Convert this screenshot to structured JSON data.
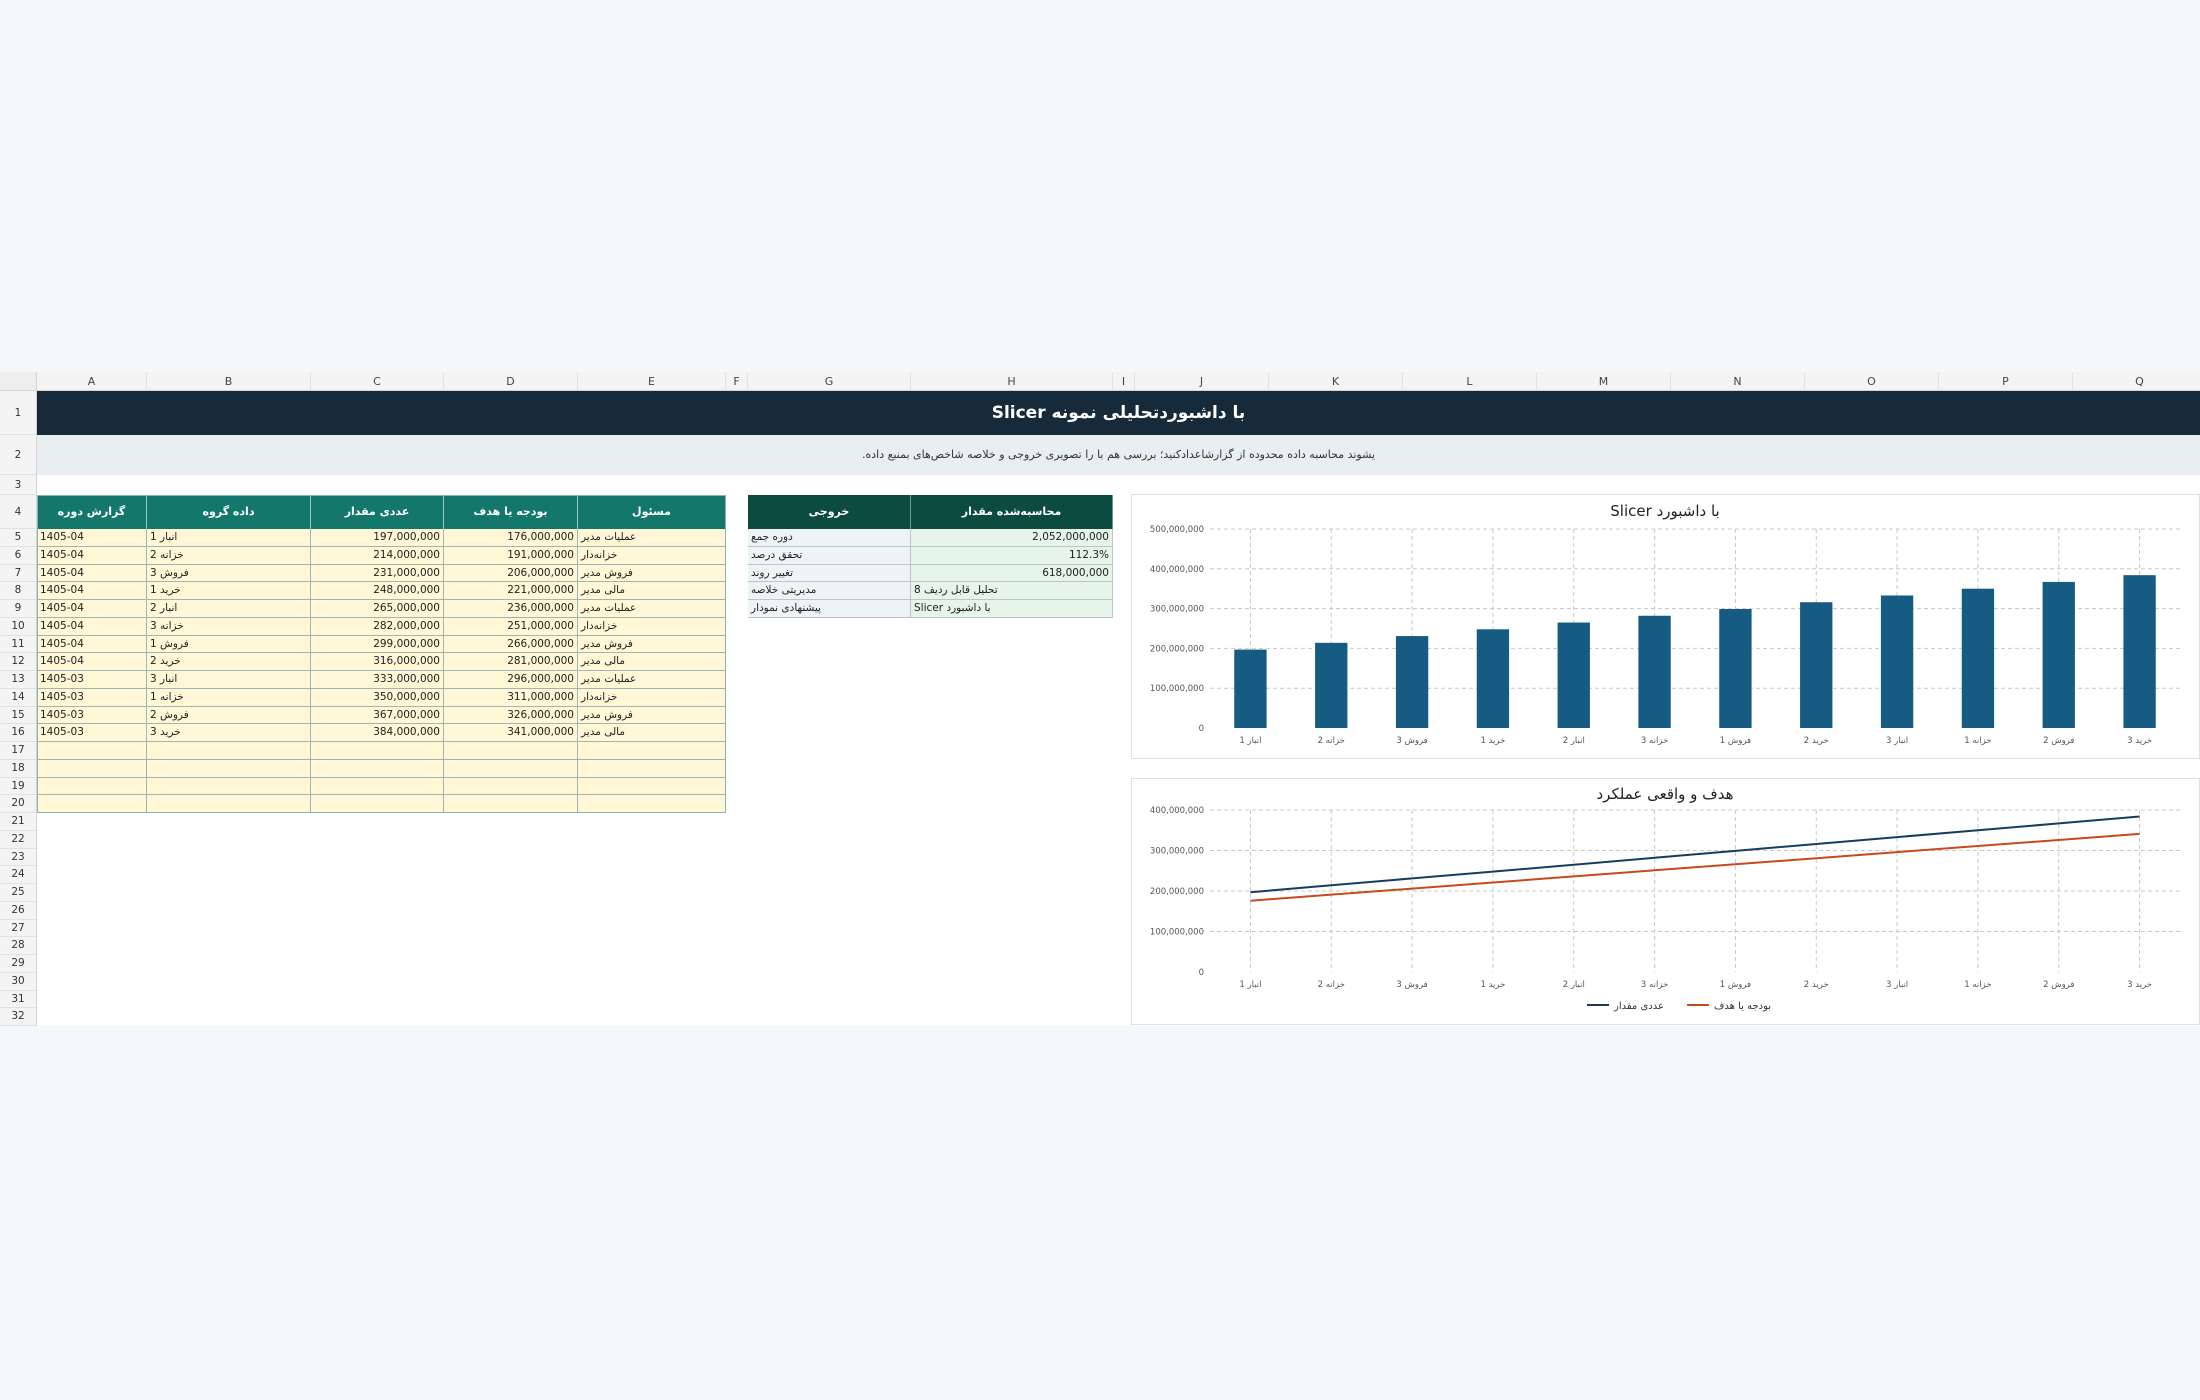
{
  "sheet": {
    "columns": [
      "A",
      "B",
      "C",
      "D",
      "E",
      "F",
      "G",
      "H",
      "I",
      "J",
      "K",
      "L",
      "M",
      "N",
      "O",
      "P",
      "Q"
    ],
    "rows": [
      "1",
      "2",
      "3",
      "4",
      "5",
      "6",
      "7",
      "8",
      "9",
      "10",
      "11",
      "12",
      "13",
      "14",
      "15",
      "16",
      "17",
      "18",
      "19",
      "20",
      "21",
      "22",
      "23",
      "24",
      "25",
      "26",
      "27",
      "28",
      "29",
      "30",
      "31",
      "32"
    ],
    "title": "Slicer با داشبوردتحلیلی نمونه",
    "subtitle": ".یشوند محاسبه داده محدوده از گزارشاعدادکنید؛ بررسی هم با را تصویری خروجی و خلاصه شاخص‌های بمنبع داده"
  },
  "data_table": {
    "headers": [
      "گزارش دوره",
      "داده گروه",
      "عددی مقدار",
      "بودجه یا هدف",
      "مسئول"
    ],
    "rows": [
      [
        "1405-04",
        "1 انبار",
        "197,000,000",
        "176,000,000",
        "عملیات مدیر"
      ],
      [
        "1405-04",
        "2 خزانه",
        "214,000,000",
        "191,000,000",
        "خزانه‌دار"
      ],
      [
        "1405-04",
        "3 فروش",
        "231,000,000",
        "206,000,000",
        "فروش مدیر"
      ],
      [
        "1405-04",
        "1 خرید",
        "248,000,000",
        "221,000,000",
        "مالی مدیر"
      ],
      [
        "1405-04",
        "2 انبار",
        "265,000,000",
        "236,000,000",
        "عملیات مدیر"
      ],
      [
        "1405-04",
        "3 خزانه",
        "282,000,000",
        "251,000,000",
        "خزانه‌دار"
      ],
      [
        "1405-04",
        "1 فروش",
        "299,000,000",
        "266,000,000",
        "فروش مدیر"
      ],
      [
        "1405-04",
        "2 خرید",
        "316,000,000",
        "281,000,000",
        "مالی مدیر"
      ],
      [
        "1405-03",
        "3 انبار",
        "333,000,000",
        "296,000,000",
        "عملیات مدیر"
      ],
      [
        "1405-03",
        "1 خزانه",
        "350,000,000",
        "311,000,000",
        "خزانه‌دار"
      ],
      [
        "1405-03",
        "2 فروش",
        "367,000,000",
        "326,000,000",
        "فروش مدیر"
      ],
      [
        "1405-03",
        "3 خرید",
        "384,000,000",
        "341,000,000",
        "مالی مدیر"
      ]
    ]
  },
  "summary_table": {
    "headers": [
      "خروجی",
      "محاسبه‌شده مقدار"
    ],
    "rows": [
      [
        "دوره جمع",
        "2,052,000,000"
      ],
      [
        "تحقق درصد",
        "112.3%"
      ],
      [
        "تغییر روند",
        "618,000,000"
      ],
      [
        "مدیریتی خلاصه",
        "تحلیل قابل ردیف 8"
      ],
      [
        "پیشنهادی نمودار",
        "Slicer با داشبورد"
      ]
    ]
  },
  "colors": {
    "title_bg": "#172a3a",
    "header_teal": "#13786b",
    "header_dark": "#0c4c40",
    "input_fill": "#fff7d6",
    "bar": "#165b82",
    "line_actual": "#173d5e",
    "line_target": "#c84a1c"
  },
  "chart_data": [
    {
      "type": "bar",
      "title": "Slicer با داشبورد",
      "categories": [
        "1 انبار",
        "2 خزانه",
        "3 فروش",
        "1 خرید",
        "2 انبار",
        "3 خزانه",
        "1 فروش",
        "2 خرید",
        "3 انبار",
        "1 خزانه",
        "2 فروش",
        "3 خرید"
      ],
      "series": [
        {
          "values": [
            197000000,
            214000000,
            231000000,
            248000000,
            265000000,
            282000000,
            299000000,
            316000000,
            333000000,
            350000000,
            367000000,
            384000000
          ]
        }
      ],
      "ylim": [
        0,
        500000000
      ],
      "yticks": [
        "0",
        "100,000,000",
        "200,000,000",
        "300,000,000",
        "400,000,000",
        "500,000,000"
      ],
      "grid": true
    },
    {
      "type": "line",
      "title": "هدف و واقعی عملکرد",
      "categories": [
        "1 انبار",
        "2 خزانه",
        "3 فروش",
        "1 خرید",
        "2 انبار",
        "3 خزانه",
        "1 فروش",
        "2 خرید",
        "3 انبار",
        "1 خزانه",
        "2 فروش",
        "3 خرید"
      ],
      "series": [
        {
          "name": "عددی مقدار",
          "values": [
            197000000,
            214000000,
            231000000,
            248000000,
            265000000,
            282000000,
            299000000,
            316000000,
            333000000,
            350000000,
            367000000,
            384000000
          ]
        },
        {
          "name": "بودجه یا هدف",
          "values": [
            176000000,
            191000000,
            206000000,
            221000000,
            236000000,
            251000000,
            266000000,
            281000000,
            296000000,
            311000000,
            326000000,
            341000000
          ]
        }
      ],
      "ylim": [
        0,
        400000000
      ],
      "yticks": [
        "0",
        "100,000,000",
        "200,000,000",
        "300,000,000",
        "400,000,000"
      ],
      "grid": true,
      "legend": "bottom"
    }
  ]
}
